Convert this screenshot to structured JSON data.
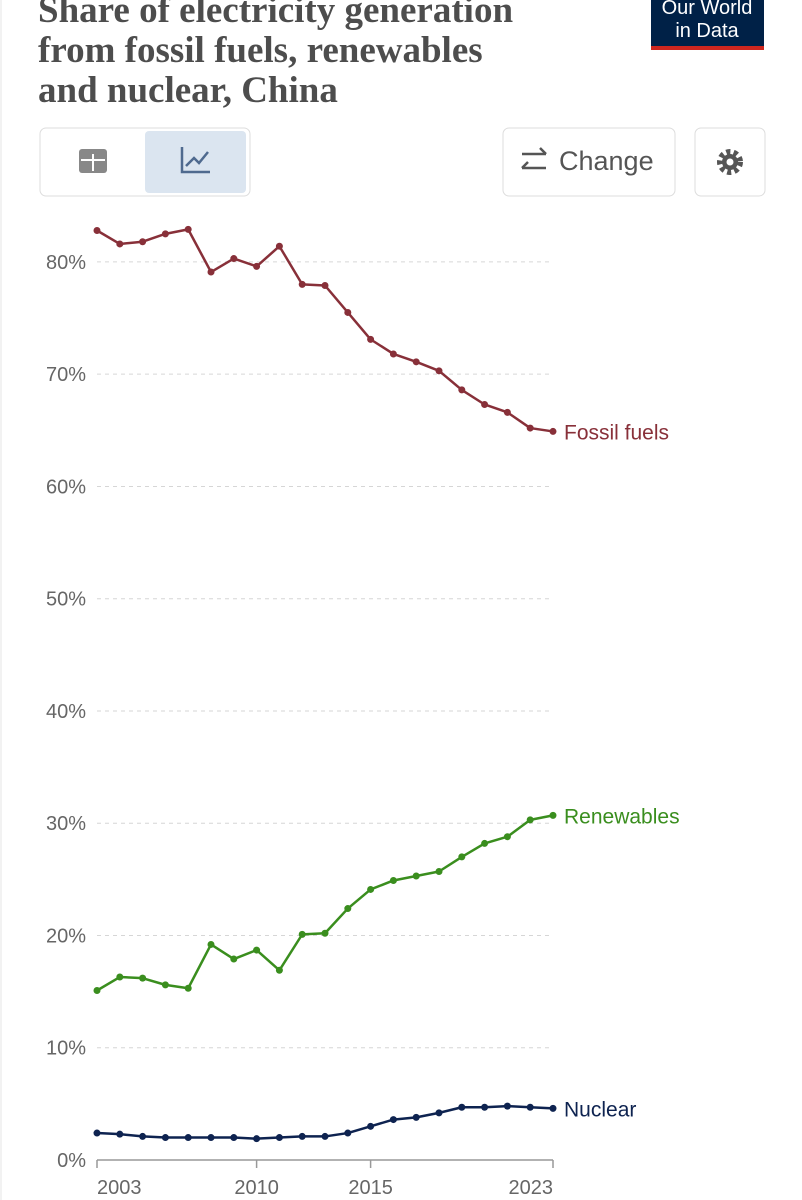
{
  "chart_data": {
    "type": "line",
    "title_lines": [
      "Share of electricity generation",
      "from fossil fuels, renewables",
      "and nuclear, China"
    ],
    "logo": [
      "Our World",
      "in Data"
    ],
    "change_button": "Change",
    "x": [
      2003,
      2004,
      2005,
      2006,
      2007,
      2008,
      2009,
      2010,
      2011,
      2012,
      2013,
      2014,
      2015,
      2016,
      2017,
      2018,
      2019,
      2020,
      2021,
      2022,
      2023
    ],
    "xlim": [
      2003,
      2023
    ],
    "xticks": [
      2003,
      2010,
      2015,
      2023
    ],
    "ylim": [
      0,
      83.2
    ],
    "yticks": [
      {
        "value": 0,
        "label": "0%"
      },
      {
        "value": 10,
        "label": "10%"
      },
      {
        "value": 20,
        "label": "20%"
      },
      {
        "value": 30,
        "label": "30%"
      },
      {
        "value": 40,
        "label": "40%"
      },
      {
        "value": 50,
        "label": "50%"
      },
      {
        "value": 60,
        "label": "60%"
      },
      {
        "value": 70,
        "label": "70%"
      },
      {
        "value": 80,
        "label": "80%"
      }
    ],
    "grid": true,
    "series": [
      {
        "name": "Fossil fuels",
        "color": "#883039",
        "values": [
          82.8,
          81.6,
          81.8,
          82.5,
          82.9,
          79.1,
          80.3,
          79.6,
          81.4,
          78.0,
          77.9,
          75.5,
          73.1,
          71.8,
          71.1,
          70.3,
          68.6,
          67.3,
          66.6,
          65.2,
          64.9
        ]
      },
      {
        "name": "Renewables",
        "color": "#3a8e1e",
        "values": [
          15.1,
          16.3,
          16.2,
          15.6,
          15.3,
          19.2,
          17.9,
          18.7,
          16.9,
          20.1,
          20.2,
          22.4,
          24.1,
          24.9,
          25.3,
          25.7,
          27.0,
          28.2,
          28.8,
          30.3,
          30.7
        ]
      },
      {
        "name": "Nuclear",
        "color": "#0e2350",
        "values": [
          2.4,
          2.3,
          2.1,
          2.0,
          2.0,
          2.0,
          2.0,
          1.9,
          2.0,
          2.1,
          2.1,
          2.4,
          3.0,
          3.6,
          3.8,
          4.2,
          4.7,
          4.7,
          4.8,
          4.7,
          4.6
        ]
      }
    ]
  }
}
